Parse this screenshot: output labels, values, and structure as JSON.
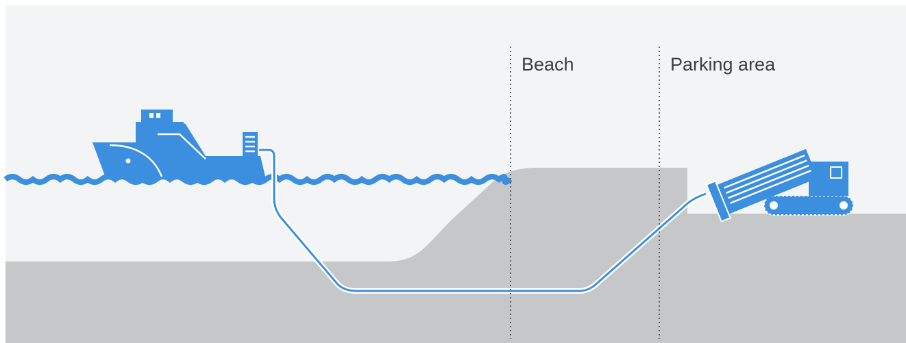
{
  "labels": {
    "beach": "Beach",
    "parking_area": "Parking area"
  }
}
